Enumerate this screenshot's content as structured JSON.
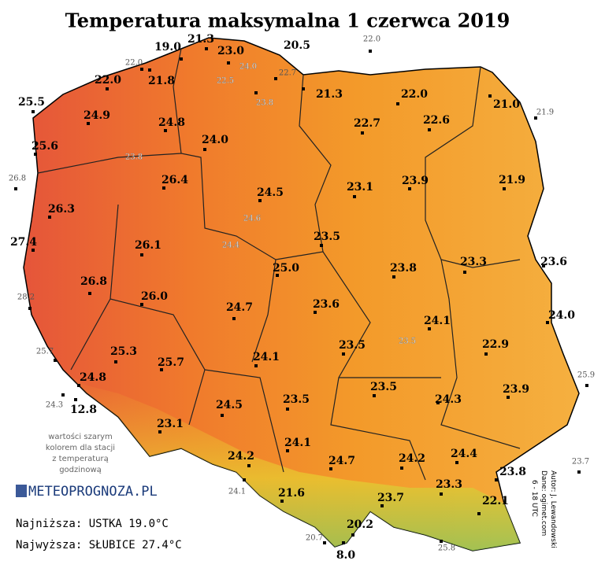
{
  "title": "Temperatura maksymalna 1 czerwca 2019",
  "legend_note": [
    "wartości szarym",
    "kolorem dla stacji",
    "z temperaturą",
    "godzinową"
  ],
  "logo": "METEOPROGNOZA.PL",
  "lowest": "Najniższa: USTKA 19.0°C",
  "highest": "Najwyższa: SŁUBICE 27.4°C",
  "credits": [
    "Autor: J. Lewandowski",
    "Dane: ogimet.com",
    "6 - 18 UTC"
  ],
  "stations": [
    "19.0",
    "21.3",
    "23.0",
    "20.5",
    "22.0",
    "21.8",
    "25.5",
    "21.3",
    "22.0",
    "21.0",
    "24.9",
    "24.8",
    "22.7",
    "22.6",
    "25.6",
    "24.0",
    "26.4",
    "24.5",
    "23.1",
    "23.9",
    "21.9",
    "26.3",
    "27.4",
    "26.1",
    "23.5",
    "25.0",
    "23.8",
    "23.3",
    "23.6",
    "26.8",
    "26.0",
    "24.7",
    "23.6",
    "24.1",
    "24.0",
    "25.3",
    "23.5",
    "22.9",
    "24.1",
    "25.7",
    "24.8",
    "23.5",
    "23.9",
    "24.3",
    "12.8",
    "24.5",
    "23.5",
    "23.1",
    "24.1",
    "24.4",
    "24.2",
    "24.7",
    "24.2",
    "23.8",
    "23.3",
    "21.6",
    "23.7",
    "22.1",
    "20.2",
    "8.0"
  ],
  "hourly_stations": [
    "22.0",
    "22.0",
    "24.0",
    "22.7",
    "22.5",
    "23.8",
    "21.9",
    "23.8",
    "26.8",
    "24.6",
    "24.4",
    "28.2",
    "23.5",
    "25.7",
    "24.3",
    "25.9",
    "23.7",
    "24.1",
    "20.7",
    "25.8"
  ]
}
